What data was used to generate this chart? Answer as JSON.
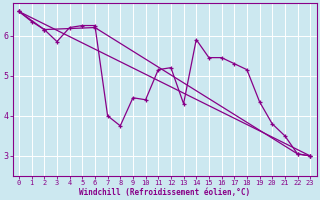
{
  "background_color": "#cce8f0",
  "grid_color": "#ffffff",
  "line_color": "#880088",
  "xlabel": "Windchill (Refroidissement éolien,°C)",
  "xlim": [
    -0.5,
    23.5
  ],
  "ylim": [
    2.5,
    6.8
  ],
  "yticks": [
    3,
    4,
    5,
    6
  ],
  "xticks": [
    0,
    1,
    2,
    3,
    4,
    5,
    6,
    7,
    8,
    9,
    10,
    11,
    12,
    13,
    14,
    15,
    16,
    17,
    18,
    19,
    20,
    21,
    22,
    23
  ],
  "trend1": {
    "x": [
      0,
      23
    ],
    "y": [
      6.6,
      3.0
    ]
  },
  "trend2": {
    "x": [
      0,
      2,
      6,
      22,
      23
    ],
    "y": [
      6.6,
      6.15,
      6.2,
      3.05,
      3.0
    ]
  },
  "data_line": {
    "x": [
      0,
      1,
      2,
      3,
      4,
      5,
      6,
      7,
      8,
      9,
      10,
      11,
      12,
      13,
      14,
      15,
      16,
      17,
      18,
      19,
      20,
      21,
      22,
      23
    ],
    "y": [
      6.6,
      6.35,
      6.15,
      5.85,
      6.2,
      6.25,
      6.25,
      4.0,
      3.75,
      4.45,
      4.4,
      5.15,
      5.2,
      4.3,
      5.9,
      5.45,
      5.45,
      5.3,
      5.15,
      4.35,
      3.8,
      3.5,
      3.05,
      3.0
    ]
  }
}
